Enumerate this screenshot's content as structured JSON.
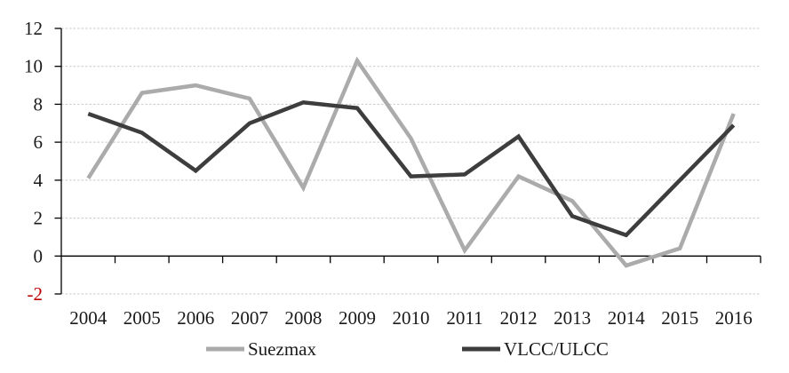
{
  "chart_data": {
    "type": "line",
    "title": "",
    "xlabel": "",
    "ylabel": "",
    "categories": [
      "2004",
      "2005",
      "2006",
      "2007",
      "2008",
      "2009",
      "2010",
      "2011",
      "2012",
      "2013",
      "2014",
      "2015",
      "2016"
    ],
    "series": [
      {
        "name": "Suezmax",
        "color": "#ABABAB",
        "values": [
          4.1,
          8.6,
          9.0,
          8.3,
          3.6,
          10.3,
          6.2,
          0.3,
          4.2,
          2.9,
          -0.5,
          0.4,
          7.5
        ]
      },
      {
        "name": "VLCC/ULCC",
        "color": "#3D3D3D",
        "values": [
          7.5,
          6.5,
          4.5,
          7.0,
          8.1,
          7.8,
          4.2,
          4.3,
          6.3,
          2.1,
          1.1,
          4.0,
          6.9
        ]
      }
    ],
    "ylim": [
      -2,
      12
    ],
    "yticks": [
      12,
      10,
      8,
      6,
      4,
      2,
      0,
      -2
    ],
    "grid": {
      "horizontal": true,
      "style": "dashed",
      "color": "#C9C9C9"
    },
    "axis_color": "#000000",
    "tick_label_color": "#1a1a1a",
    "negative_tick_color": "#C00000",
    "legend_position": "bottom",
    "background": "#FFFFFF"
  }
}
